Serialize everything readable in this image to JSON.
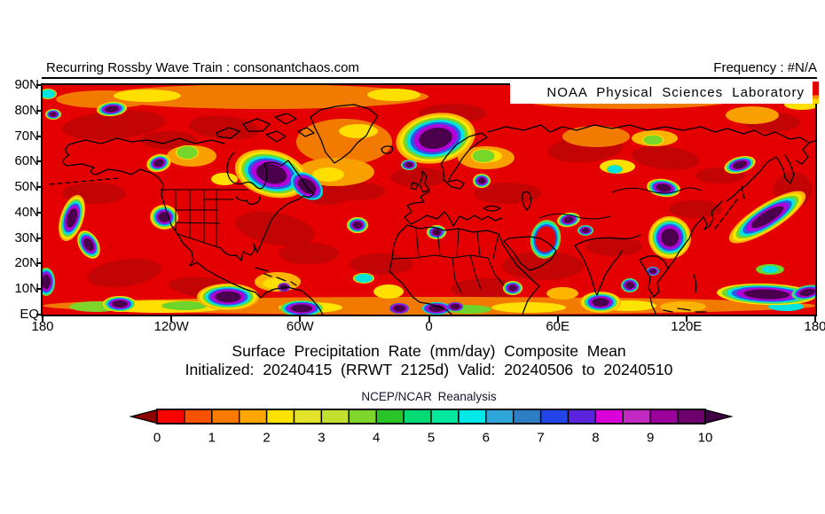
{
  "header": {
    "left_text": "Recurring Rossby Wave Train : consonantchaos.com",
    "right_text": "Frequency : #N/A"
  },
  "branding": {
    "lab_name": "NOAA Physical Sciences Laboratory",
    "bar_color": "#e00000"
  },
  "map": {
    "lat_ticks": [
      "90N",
      "80N",
      "70N",
      "60N",
      "50N",
      "40N",
      "30N",
      "20N",
      "10N",
      "EQ"
    ],
    "lon_ticks": [
      "180",
      "120W",
      "60W",
      "0",
      "60E",
      "120E",
      "180"
    ],
    "background_color": "#e40000"
  },
  "caption": {
    "title": "Surface Precipitation Rate (mm/day) Composite Mean",
    "subtitle": "Initialized: 20240415 (RRWT 2125d) Valid: 20240506 to 20240510",
    "dataset": "NCEP/NCAR Reanalysis"
  },
  "colorbar": {
    "units": "mm/day",
    "range_min": 0,
    "range_max": 10,
    "tick_labels": [
      "0",
      "1",
      "2",
      "3",
      "4",
      "5",
      "6",
      "7",
      "8",
      "9",
      "10"
    ],
    "segment_colors": [
      "#f80400",
      "#f85200",
      "#fa7a00",
      "#ffa600",
      "#fbe202",
      "#e2e22a",
      "#c4e02e",
      "#7ed62a",
      "#28c428",
      "#00da74",
      "#00e89e",
      "#00e8e8",
      "#2ea6da",
      "#2e7ec6",
      "#2244e8",
      "#5a24dc",
      "#da00da",
      "#c228c2",
      "#9a009a",
      "#6e006e"
    ],
    "left_arrow_color": "#8e0000",
    "right_arrow_color": "#400044"
  }
}
